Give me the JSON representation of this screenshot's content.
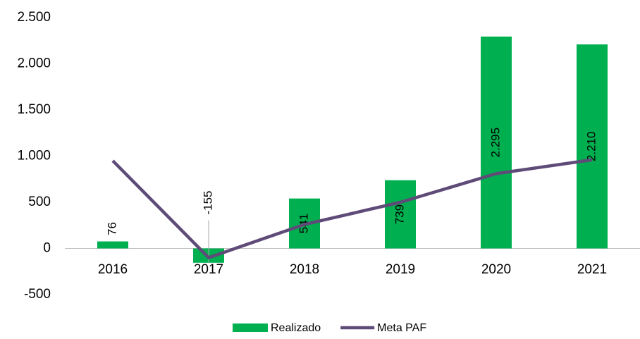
{
  "chart_data": {
    "type": "bar",
    "categories": [
      "2016",
      "2017",
      "2018",
      "2019",
      "2020",
      "2021"
    ],
    "series": [
      {
        "name": "Realizado",
        "type": "bar",
        "color": "#00b050",
        "values": [
          76,
          -155,
          541,
          739,
          2295,
          2210
        ],
        "value_labels": [
          "76",
          "-155",
          "541",
          "739",
          "2.295",
          "2.210"
        ]
      },
      {
        "name": "Meta PAF",
        "type": "line",
        "color": "#5e4b78",
        "values": [
          950,
          -100,
          260,
          500,
          810,
          960
        ]
      }
    ],
    "ylim": [
      -500,
      2500
    ],
    "yticks": [
      -500,
      0,
      500,
      {
        "value": 1000,
        "label": "1.000"
      },
      {
        "value": 1500,
        "label": "1.500"
      },
      {
        "value": 2000,
        "label": "2.000"
      },
      {
        "value": 2500,
        "label": "2.500"
      }
    ],
    "grid": false,
    "legend": "bottom"
  }
}
